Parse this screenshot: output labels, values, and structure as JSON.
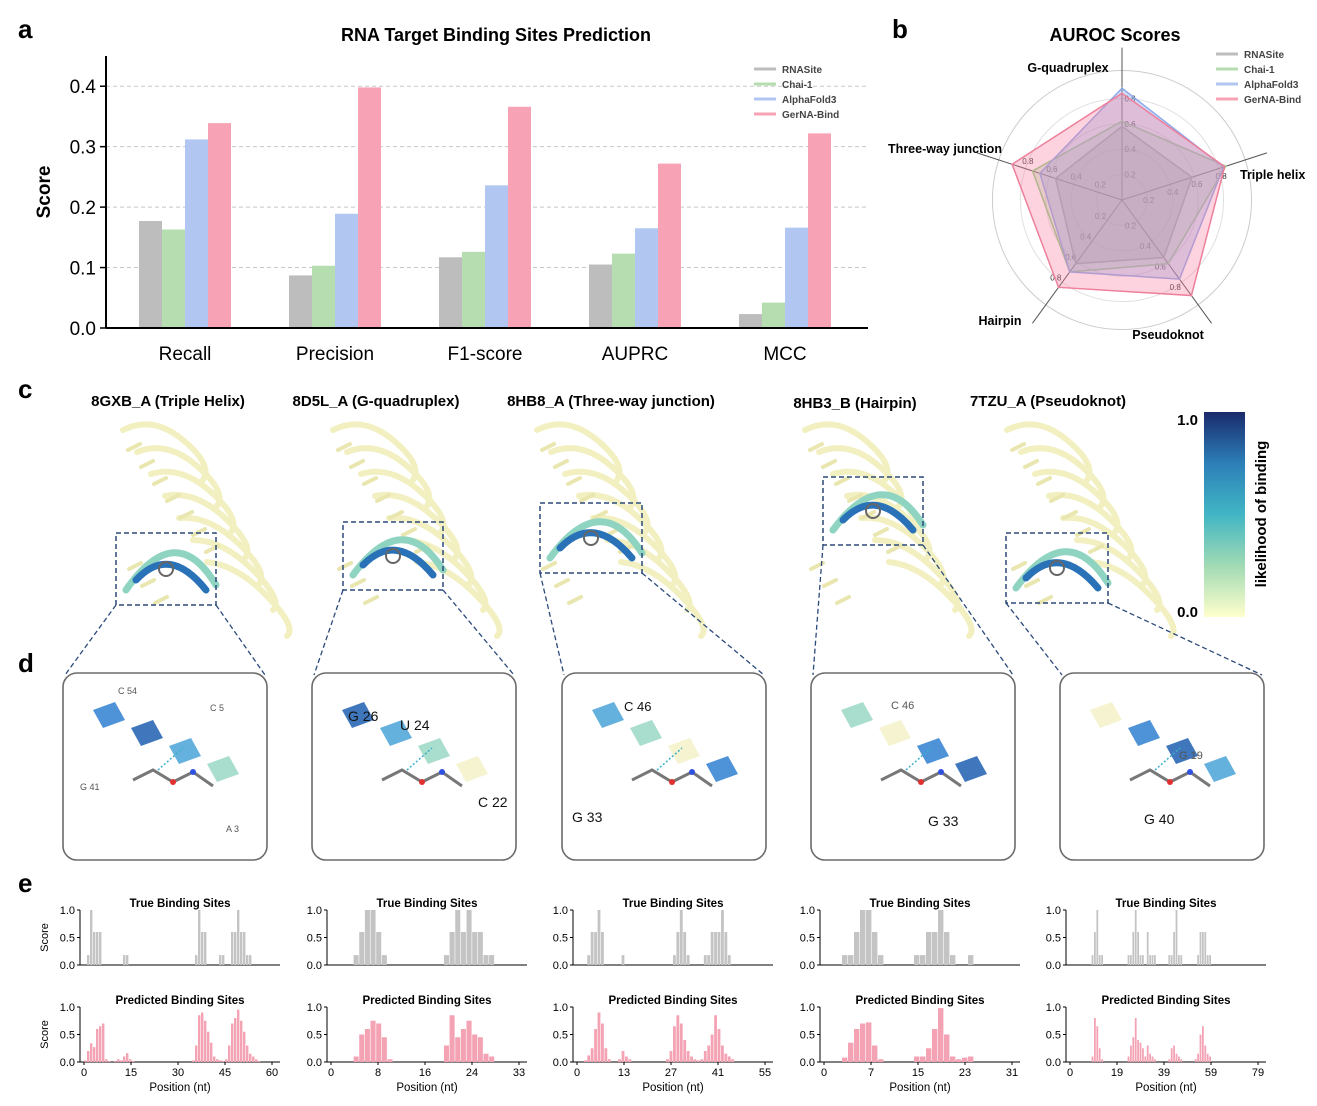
{
  "panels": {
    "a": "a",
    "b": "b",
    "c": "c",
    "d": "d",
    "e": "e"
  },
  "colors": {
    "RNASite": "#bdbdbd",
    "Chai-1": "#b5ddb0",
    "AlphaFold3": "#b2c6f2",
    "GerNA-Bind": "#f7a3b5",
    "radar_fill": {
      "RNASite": "rgba(160,160,160,0.35)",
      "Chai-1": "rgba(150,210,140,0.30)",
      "AlphaFold3": "rgba(140,170,235,0.40)",
      "GerNA-Bind": "rgba(245,130,160,0.35)"
    },
    "radar_line": {
      "RNASite": "#9e9e9e",
      "Chai-1": "#8fcf86",
      "AlphaFold3": "#8eaaea",
      "GerNA-Bind": "#ef7f9a"
    }
  },
  "chart_data": [
    {
      "type": "bar",
      "title": "RNA  Target Binding Sites Prediction",
      "xlabel": "",
      "ylabel": "Score",
      "ylim": [
        0,
        0.45
      ],
      "yticks": [
        "0.0",
        "0.1",
        "0.2",
        "0.3",
        "0.4"
      ],
      "categories": [
        "Recall",
        "Precision",
        "F1-score",
        "AUPRC",
        "MCC"
      ],
      "series": [
        {
          "name": "RNASite",
          "values": [
            0.177,
            0.087,
            0.117,
            0.105,
            0.023
          ]
        },
        {
          "name": "Chai-1",
          "values": [
            0.163,
            0.103,
            0.126,
            0.123,
            0.042
          ]
        },
        {
          "name": "AlphaFold3",
          "values": [
            0.312,
            0.189,
            0.236,
            0.165,
            0.166
          ]
        },
        {
          "name": "GerNA-Bind",
          "values": [
            0.339,
            0.398,
            0.366,
            0.272,
            0.322
          ]
        }
      ],
      "legend": "top-right"
    },
    {
      "type": "radar",
      "title": "AUROC Scores",
      "axes": [
        "G-quadruplex",
        "Triple helix",
        "Pseudoknot",
        "Hairpin",
        "Three-way junction"
      ],
      "rticks": [
        "0.2",
        "0.4",
        "0.6",
        "0.8"
      ],
      "rlim": [
        0,
        1
      ],
      "series": [
        {
          "name": "RNASite",
          "values": [
            0.58,
            0.58,
            0.56,
            0.62,
            0.55
          ]
        },
        {
          "name": "Chai-1",
          "values": [
            0.62,
            0.86,
            0.62,
            0.7,
            0.74
          ]
        },
        {
          "name": "AlphaFold3",
          "values": [
            0.88,
            0.84,
            0.77,
            0.7,
            0.68
          ]
        },
        {
          "name": "GerNA-Bind",
          "values": [
            0.84,
            0.85,
            0.93,
            0.85,
            0.91
          ]
        }
      ],
      "legend": "top-right"
    },
    {
      "type": "bar",
      "title_true": "True Binding Sites",
      "title_pred": "Predicted Binding Sites",
      "ylabel": "Score",
      "xlabel": "Position (nt)",
      "yticks": [
        "0.0",
        "0.5",
        "1.0"
      ],
      "panels": [
        {
          "n": 64,
          "xticks": [
            "0",
            "15",
            "30",
            "45",
            "60"
          ],
          "true": [
            0,
            0.18,
            1,
            0.6,
            0.6,
            0.6,
            0,
            0,
            0,
            0,
            0,
            0,
            0,
            0.18,
            0.18,
            0,
            0,
            0,
            0,
            0,
            0,
            0,
            0,
            0,
            0,
            0,
            0,
            0,
            0,
            0,
            0,
            0,
            0,
            0,
            0,
            0,
            0,
            0.18,
            1,
            0.6,
            0.6,
            0,
            0,
            0,
            0,
            0.18,
            0.18,
            0,
            0,
            0.6,
            0.6,
            1,
            0.6,
            0.6,
            0.18,
            0.18,
            0,
            0,
            0,
            0,
            0,
            0,
            0,
            0
          ],
          "pred": [
            0.03,
            0.2,
            0.34,
            0.27,
            0.6,
            0.65,
            0.7,
            0.05,
            0.02,
            0,
            0.02,
            0.05,
            0.03,
            0.1,
            0.16,
            0.05,
            0.02,
            0,
            0,
            0,
            0,
            0,
            0,
            0,
            0,
            0,
            0,
            0,
            0,
            0,
            0,
            0,
            0,
            0,
            0,
            0,
            0.03,
            0.3,
            0.85,
            0.9,
            0.75,
            0.55,
            0.35,
            0.1,
            0.05,
            0.03,
            0.02,
            0.05,
            0.3,
            0.7,
            0.8,
            0.95,
            0.75,
            0.55,
            0.3,
            0.15,
            0.1,
            0.05,
            0.02,
            0,
            0,
            0,
            0,
            0
          ]
        },
        {
          "n": 34,
          "xticks": [
            "0",
            "8",
            "16",
            "24",
            "33"
          ],
          "true": [
            0,
            0,
            0,
            0,
            0.18,
            0.6,
            1,
            1,
            0.6,
            0.18,
            0,
            0,
            0,
            0,
            0,
            0,
            0,
            0,
            0,
            0,
            0.18,
            0.6,
            1,
            0.6,
            1,
            0.6,
            0.6,
            0.18,
            0.18,
            0,
            0,
            0,
            0,
            0
          ],
          "pred": [
            0,
            0,
            0,
            0,
            0.1,
            0.5,
            0.6,
            0.75,
            0.7,
            0.45,
            0.05,
            0,
            0,
            0,
            0,
            0,
            0,
            0,
            0,
            0,
            0.3,
            0.85,
            0.45,
            0.6,
            0.75,
            0.5,
            0.45,
            0.15,
            0.1,
            0,
            0,
            0,
            0,
            0
          ],
          "_pad": true
        },
        {
          "n": 56,
          "xticks": [
            "0",
            "13",
            "27",
            "41",
            "55"
          ],
          "true": [
            0,
            0,
            0,
            0.18,
            0.6,
            0.6,
            1,
            0.6,
            0,
            0,
            0,
            0,
            0,
            0.18,
            0,
            0,
            0,
            0,
            0,
            0,
            0,
            0,
            0,
            0,
            0,
            0,
            0,
            0,
            0.18,
            0.6,
            1,
            0.6,
            0.18,
            0,
            0,
            0,
            0,
            0.18,
            0.18,
            0.6,
            0.6,
            0.6,
            1,
            0.6,
            0.18,
            0,
            0,
            0,
            0,
            0,
            0,
            0,
            0,
            0,
            0,
            0
          ],
          "pred": [
            0,
            0,
            0.03,
            0.12,
            0.25,
            0.6,
            0.9,
            0.7,
            0.25,
            0.05,
            0,
            0,
            0.05,
            0.2,
            0.1,
            0.05,
            0,
            0,
            0,
            0,
            0,
            0,
            0,
            0,
            0,
            0,
            0.05,
            0.2,
            0.65,
            0.85,
            0.7,
            0.4,
            0.2,
            0.1,
            0.05,
            0.03,
            0.05,
            0.2,
            0.3,
            0.5,
            0.85,
            0.6,
            0.3,
            0.15,
            0.1,
            0.05,
            0,
            0,
            0,
            0,
            0,
            0,
            0,
            0,
            0,
            0
          ]
        },
        {
          "n": 32,
          "xticks": [
            "7",
            "15",
            "23",
            "31"
          ],
          "offset": 3,
          "true": [
            0,
            0,
            0,
            0.18,
            0.18,
            0.6,
            1,
            1,
            0.6,
            0.18,
            0,
            0,
            0,
            0,
            0,
            0.18,
            0.18,
            0.6,
            0.6,
            1,
            0.6,
            0.18,
            0,
            0,
            0.18,
            0,
            0,
            0,
            0,
            0,
            0,
            0
          ],
          "pred": [
            0,
            0,
            0,
            0.08,
            0.35,
            0.6,
            0.7,
            0.72,
            0.3,
            0.05,
            0,
            0,
            0,
            0,
            0,
            0.1,
            0.1,
            0.25,
            0.6,
            0.98,
            0.5,
            0.1,
            0.05,
            0.08,
            0.1,
            0,
            0,
            0,
            0,
            0,
            0,
            0
          ],
          "xlabel0": "0"
        },
        {
          "n": 80,
          "xticks": [
            "0",
            "19",
            "39",
            "59",
            "79"
          ],
          "true": [
            0,
            0,
            0,
            0,
            0,
            0,
            0,
            0,
            0,
            0.18,
            0.6,
            1,
            0.18,
            0.18,
            0,
            0,
            0,
            0,
            0,
            0,
            0,
            0,
            0,
            0,
            0.18,
            0.18,
            0.6,
            1,
            0.6,
            0.18,
            0.18,
            0,
            0.6,
            0.18,
            0.18,
            0.18,
            0,
            0,
            0,
            0,
            0,
            0.18,
            0.18,
            0.6,
            1,
            0.18,
            0.18,
            0,
            0,
            0,
            0,
            0,
            0,
            0.18,
            0.6,
            0.6,
            0.6,
            0.18,
            0.18,
            0,
            0,
            0,
            0,
            0,
            0,
            0,
            0,
            0,
            0,
            0,
            0,
            0,
            0,
            0,
            0,
            0,
            0,
            0,
            0,
            0
          ],
          "pred": [
            0,
            0,
            0,
            0,
            0,
            0,
            0,
            0,
            0,
            0.1,
            0.8,
            0.65,
            0.25,
            0.05,
            0,
            0,
            0,
            0,
            0,
            0,
            0,
            0,
            0,
            0,
            0.1,
            0.3,
            0.45,
            0.8,
            0.4,
            0.35,
            0.25,
            0.1,
            0.3,
            0.15,
            0.1,
            0.05,
            0,
            0,
            0,
            0,
            0,
            0.05,
            0.25,
            0.3,
            0.15,
            0.1,
            0.05,
            0,
            0,
            0,
            0,
            0,
            0.05,
            0.15,
            0.5,
            0.65,
            0.3,
            0.15,
            0.1,
            0,
            0,
            0,
            0,
            0,
            0,
            0,
            0,
            0,
            0,
            0,
            0,
            0,
            0,
            0,
            0,
            0,
            0,
            0,
            0,
            0
          ]
        }
      ]
    }
  ],
  "section_c": {
    "titles": [
      "8GXB_A  (Triple Helix)",
      "8D5L_A  (G-quadruplex)",
      "8HB8_A  (Three-way junction)",
      "8HB3_B  (Hairpin)",
      "7TZU_A  (Pseudoknot)"
    ],
    "colorbar": {
      "top": "1.0",
      "bottom": "0.0",
      "label": "likelihood  of binding"
    }
  },
  "section_d": {
    "labels": [
      [
        "C 54",
        "C 5",
        "G 41",
        "A 3"
      ],
      [
        "G 26",
        "U 24",
        "C 22"
      ],
      [
        "C 46",
        "G 33"
      ],
      [
        "C 46",
        "G 33"
      ],
      [
        "G 19",
        "G 40"
      ]
    ]
  }
}
